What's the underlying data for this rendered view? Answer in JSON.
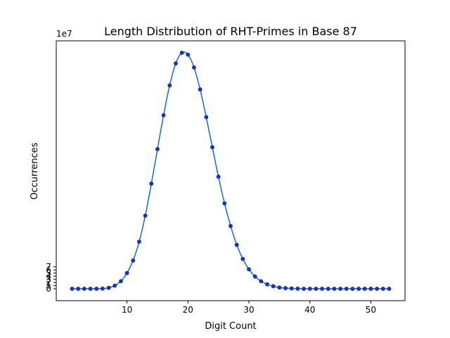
{
  "chart_data": {
    "type": "line",
    "title": "Length Distribution of RHT-Primes in Base 87",
    "xlabel": "Digit Count",
    "ylabel": "Occurrences",
    "y_offset_label": "1e7",
    "xlim": [
      -1.6,
      55.6
    ],
    "ylim": [
      -3.8,
      79.0
    ],
    "y_scale": 10000000,
    "x_ticks": [
      10,
      20,
      30,
      40,
      50
    ],
    "y_ticks": [
      0,
      1,
      2,
      3,
      4,
      5,
      6,
      7
    ],
    "grid": false,
    "legend": "none",
    "colors": {
      "line": "#1f77b4",
      "marker": "#1f2fd0",
      "marker_edge": "#0a1a9a"
    },
    "series": [
      {
        "values_unit": "1e7",
        "x": [
          1,
          2,
          3,
          4,
          5,
          6,
          7,
          8,
          9,
          10,
          11,
          12,
          13,
          14,
          15,
          16,
          17,
          18,
          19,
          20,
          21,
          22,
          23,
          24,
          25,
          26,
          27,
          28,
          29,
          30,
          31,
          32,
          33,
          34,
          35,
          36,
          37,
          38,
          39,
          40,
          41,
          42,
          43,
          44,
          45,
          46,
          47,
          48,
          49,
          50,
          51,
          52,
          53
        ],
        "y": [
          0,
          0,
          0,
          0,
          0,
          0.05,
          0.3,
          1.0,
          2.4,
          5.0,
          9.0,
          15.0,
          23.3,
          33.5,
          44.5,
          55.3,
          64.8,
          71.8,
          75.2,
          74.6,
          70.5,
          63.5,
          54.7,
          45.1,
          35.7,
          27.2,
          20.0,
          14.0,
          9.5,
          6.2,
          3.9,
          2.4,
          1.4,
          0.8,
          0.4,
          0.2,
          0.1,
          0.04,
          0,
          0,
          0,
          0,
          0,
          0,
          0,
          0,
          0,
          0,
          0,
          0,
          0,
          0,
          0
        ]
      }
    ]
  }
}
